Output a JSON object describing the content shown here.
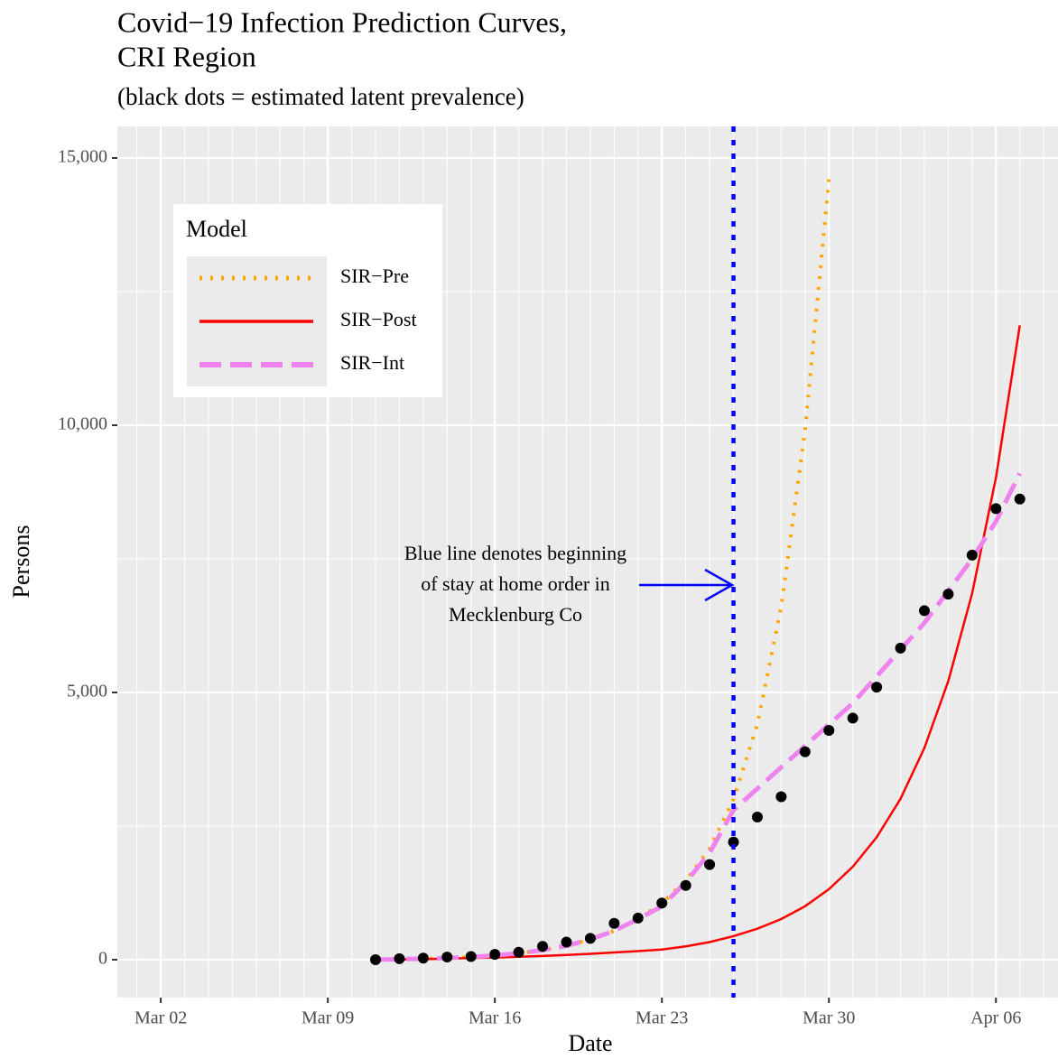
{
  "chart_data": {
    "type": "line",
    "title": "Covid−19 Infection Prediction Curves,",
    "title_line2": "CRI Region",
    "subtitle": "(black dots = estimated latent prevalence)",
    "x_label": "Date",
    "y_label": "Persons",
    "x": [
      11,
      12,
      13,
      14,
      15,
      16,
      17,
      18,
      19,
      20,
      21,
      22,
      23,
      24,
      25,
      26,
      27,
      28,
      29,
      30,
      31,
      32,
      33,
      34,
      35,
      36,
      37,
      38
    ],
    "xlim": [
      0.18,
      39.6
    ],
    "xticks": [
      {
        "value": 2,
        "label": "Mar 02"
      },
      {
        "value": 9,
        "label": "Mar 09"
      },
      {
        "value": 16,
        "label": "Mar 16"
      },
      {
        "value": 23,
        "label": "Mar 23"
      },
      {
        "value": 30,
        "label": "Mar 30"
      },
      {
        "value": 37,
        "label": "Apr 06"
      }
    ],
    "ylim": [
      -709,
      15591
    ],
    "yticks": [
      0,
      {
        "value": 5000,
        "label": "5,000"
      },
      {
        "value": 10000,
        "label": "10,000"
      },
      {
        "value": 15000,
        "label": "15,000"
      }
    ],
    "yminor": [
      2500,
      7500,
      12500
    ],
    "grid": true,
    "legend_title": "Model",
    "legend_position": "top-left",
    "series": [
      {
        "name": "SIR−Pre",
        "color": "#FFA500",
        "style": "dotted",
        "values": [
          0,
          10,
          20,
          30,
          50,
          80,
          120,
          180,
          260,
          380,
          540,
          760,
          1060,
          1480,
          2080,
          3000,
          4400,
          6600,
          9900,
          14600,
          null,
          null,
          null,
          null,
          null,
          null,
          null,
          null
        ]
      },
      {
        "name": "SIR−Post",
        "color": "#FF0000",
        "style": "solid",
        "values": [
          0,
          5,
          10,
          20,
          30,
          40,
          55,
          70,
          90,
          110,
          135,
          160,
          190,
          250,
          330,
          440,
          580,
          760,
          1000,
          1320,
          1740,
          2290,
          3010,
          3960,
          5210,
          6850,
          9020,
          11870
        ]
      },
      {
        "name": "SIR−Int",
        "color": "#EE82EE",
        "style": "dashed",
        "values": [
          0,
          10,
          20,
          30,
          50,
          80,
          120,
          180,
          260,
          380,
          540,
          760,
          1000,
          1450,
          2000,
          2800,
          3200,
          3600,
          4000,
          4400,
          4800,
          5300,
          5800,
          6300,
          6900,
          7500,
          8200,
          9100
        ]
      }
    ],
    "points": {
      "color": "#000000",
      "values": [
        0,
        20,
        30,
        50,
        60,
        100,
        140,
        250,
        330,
        400,
        680,
        780,
        1060,
        1390,
        1780,
        2200,
        2670,
        3050,
        3890,
        4290,
        4520,
        5100,
        5830,
        6530,
        6840,
        7570,
        8440,
        8620
      ]
    },
    "vline": {
      "x": 26,
      "color": "#0000FF"
    },
    "annotation": {
      "lines": [
        "Blue line denotes beginning",
        "of stay at home order in",
        "Mecklenburg Co"
      ],
      "color": "#0000FF"
    }
  }
}
